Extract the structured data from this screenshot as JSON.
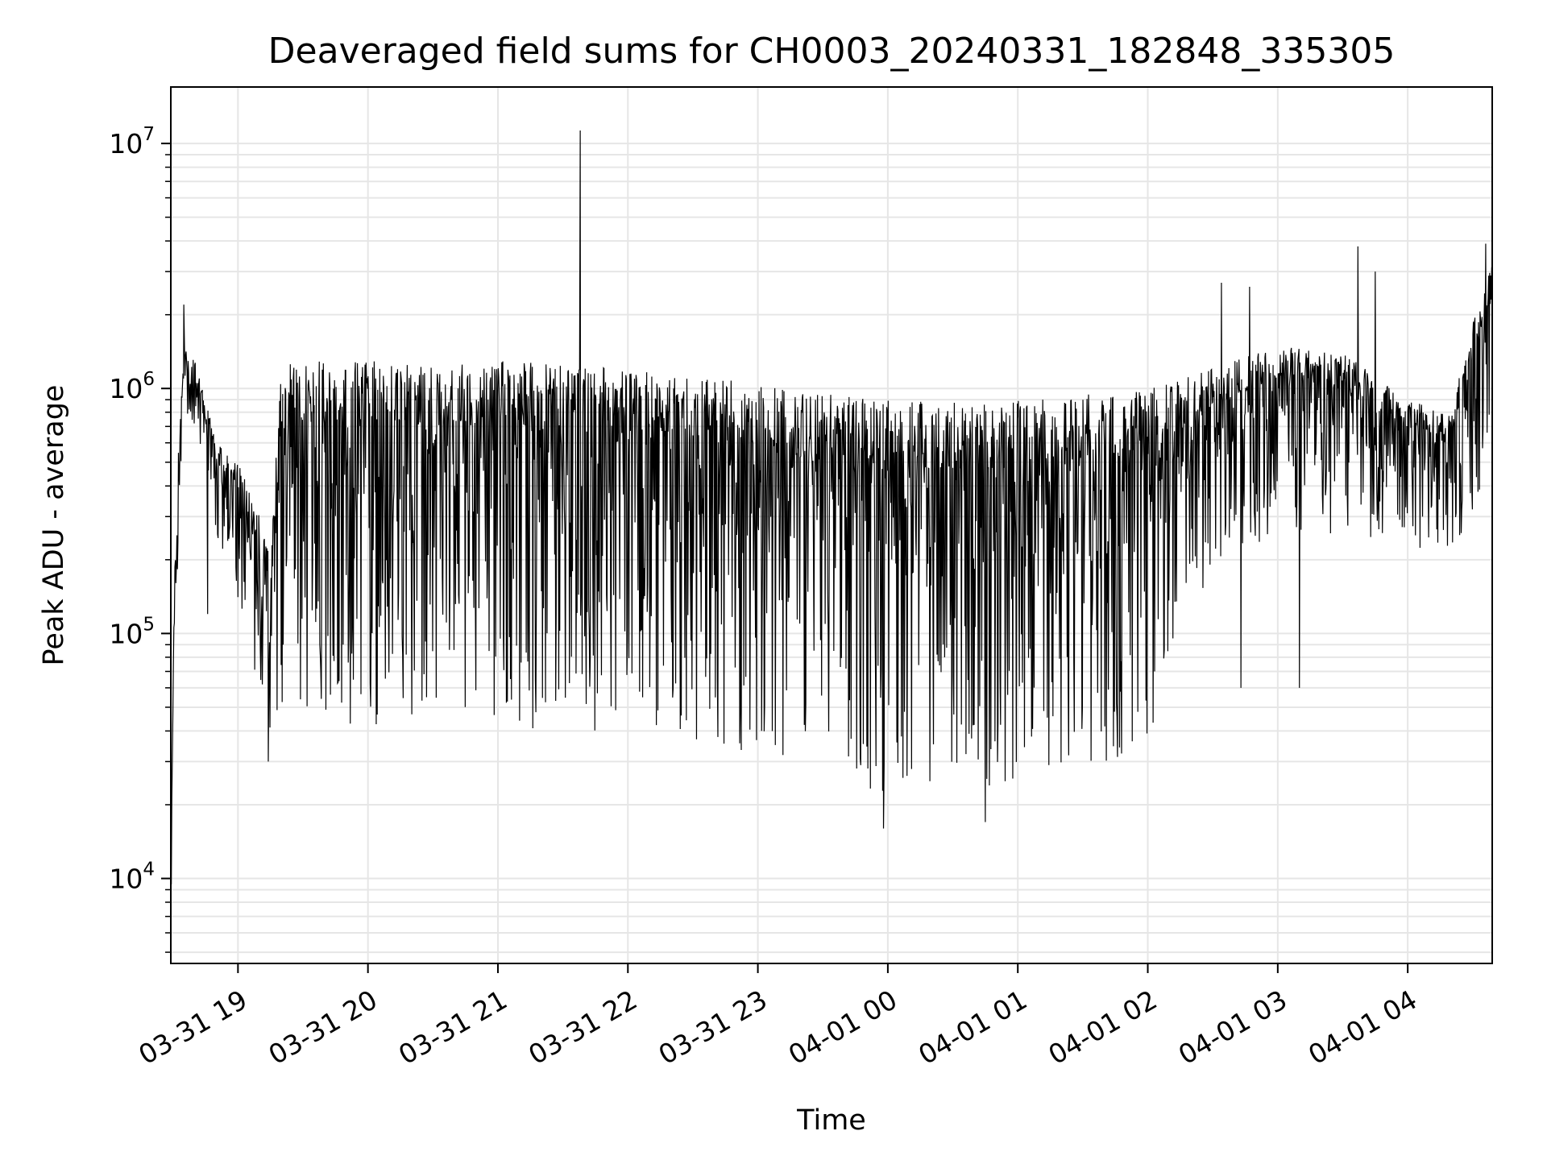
{
  "chart_data": {
    "type": "line",
    "title": "Deaveraged field sums for CH0003_20240331_182848_335305",
    "xlabel": "Time",
    "ylabel": "Peak ADU - average",
    "yscale": "log",
    "ylim": [
      4500,
      17000000
    ],
    "xlim": [
      "2024-03-31 18:29",
      "2024-04-01 04:39"
    ],
    "grid": true,
    "line_color": "#000000",
    "grid_color": "#e6e6e6",
    "x_ticks": [
      "2024-03-31 19:00",
      "2024-03-31 20:00",
      "2024-03-31 21:00",
      "2024-03-31 22:00",
      "2024-03-31 23:00",
      "2024-04-01 00:00",
      "2024-04-01 01:00",
      "2024-04-01 02:00",
      "2024-04-01 03:00",
      "2024-04-01 04:00"
    ],
    "x_tick_labels": [
      "03-31 19",
      "03-31 20",
      "03-31 21",
      "03-31 22",
      "03-31 23",
      "04-01 00",
      "04-01 01",
      "04-01 02",
      "04-01 03",
      "04-01 04"
    ],
    "y_ticks": [
      10000,
      100000,
      1000000,
      10000000
    ],
    "y_tick_base": "10",
    "y_tick_exponents": [
      "4",
      "5",
      "6",
      "7"
    ],
    "envelope": {
      "x": [
        "2024-03-31 18:29",
        "2024-03-31 18:31",
        "2024-03-31 18:35",
        "2024-03-31 18:40",
        "2024-03-31 18:45",
        "2024-03-31 18:50",
        "2024-03-31 19:00",
        "2024-03-31 19:10",
        "2024-03-31 19:15",
        "2024-03-31 19:20",
        "2024-03-31 19:30",
        "2024-03-31 20:00",
        "2024-03-31 20:30",
        "2024-03-31 21:00",
        "2024-03-31 21:30",
        "2024-03-31 22:00",
        "2024-03-31 22:30",
        "2024-03-31 23:00",
        "2024-03-31 23:30",
        "2024-04-01 00:00",
        "2024-04-01 00:30",
        "2024-04-01 01:00",
        "2024-04-01 01:30",
        "2024-04-01 02:00",
        "2024-04-01 02:30",
        "2024-04-01 03:00",
        "2024-04-01 03:30",
        "2024-04-01 04:00",
        "2024-04-01 04:20",
        "2024-04-01 04:30",
        "2024-04-01 04:39"
      ],
      "upper": [
        11000,
        300000,
        1500000,
        1300000,
        900000,
        600000,
        500000,
        300000,
        200000,
        1300000,
        1300000,
        1300000,
        1300000,
        1300000,
        1250000,
        1200000,
        1150000,
        1050000,
        950000,
        900000,
        900000,
        900000,
        950000,
        1000000,
        1200000,
        1500000,
        1400000,
        900000,
        800000,
        1900000,
        3200000
      ],
      "lower": [
        6500,
        100000,
        800000,
        700000,
        500000,
        250000,
        140000,
        55000,
        40000,
        45000,
        42000,
        40000,
        42000,
        42000,
        40000,
        38000,
        36000,
        30000,
        25000,
        22000,
        22000,
        25000,
        28000,
        32000,
        200000,
        250000,
        250000,
        210000,
        220000,
        300000,
        600000
      ]
    },
    "spikes": [
      {
        "x": "2024-03-31 18:35",
        "y": 2200000
      },
      {
        "x": "2024-03-31 18:46",
        "y": 120000
      },
      {
        "x": "2024-03-31 19:14",
        "y": 30000
      },
      {
        "x": "2024-03-31 21:38",
        "y": 11300000
      },
      {
        "x": "2024-03-31 23:58",
        "y": 16000
      },
      {
        "x": "2024-04-01 00:45",
        "y": 17000
      },
      {
        "x": "2024-04-01 02:34",
        "y": 2700000
      },
      {
        "x": "2024-04-01 02:43",
        "y": 60000
      },
      {
        "x": "2024-04-01 02:47",
        "y": 2600000
      },
      {
        "x": "2024-04-01 03:10",
        "y": 60000
      },
      {
        "x": "2024-04-01 03:37",
        "y": 3800000
      },
      {
        "x": "2024-04-01 03:45",
        "y": 3000000
      },
      {
        "x": "2024-04-01 04:36",
        "y": 3900000
      }
    ]
  }
}
